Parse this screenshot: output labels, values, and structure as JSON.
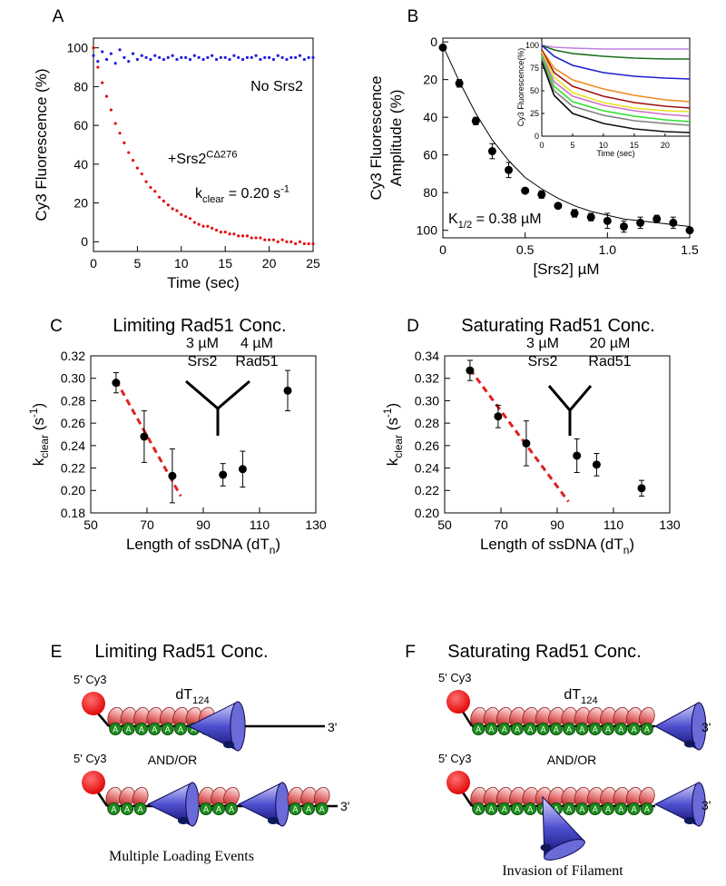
{
  "chart_data": [
    {
      "type": "scatter",
      "label": "A",
      "xlabel": "Time (sec)",
      "ylabel": [
        "Cy3 Fluorescence (%)"
      ],
      "xlim": [
        0,
        25
      ],
      "ylim": [
        -5,
        105
      ],
      "xticks": [
        0,
        5,
        10,
        15,
        20,
        25
      ],
      "yticks": [
        0,
        20,
        40,
        60,
        80,
        100
      ],
      "series": [
        {
          "color": "#1f1fe0",
          "mode": "points",
          "x": [
            0,
            0.5,
            1,
            1.5,
            2,
            2.5,
            3,
            3.5,
            4,
            4.5,
            5,
            5.5,
            6,
            6.5,
            7,
            7.5,
            8,
            8.5,
            9,
            9.5,
            10,
            10.5,
            11,
            11.5,
            12,
            12.5,
            13,
            13.5,
            14,
            14.5,
            15,
            15.5,
            16,
            16.5,
            17,
            17.5,
            18,
            18.5,
            19,
            19.5,
            20,
            20.5,
            21,
            21.5,
            22,
            22.5,
            23,
            23.5,
            24,
            24.5,
            25
          ],
          "values": [
            96,
            93,
            98,
            94,
            97,
            92,
            99,
            95,
            93,
            97,
            94,
            96,
            95,
            94,
            96,
            95,
            94,
            95,
            96,
            94,
            95,
            95,
            94,
            96,
            95,
            94,
            95,
            96,
            94,
            95,
            95,
            94,
            96,
            95,
            94,
            95,
            95,
            96,
            94,
            95,
            95,
            94,
            96,
            95,
            94,
            95,
            95,
            96,
            94,
            95,
            95
          ]
        },
        {
          "color": "#e01010",
          "mode": "points",
          "x": [
            0,
            0.5,
            1,
            1.5,
            2,
            2.5,
            3,
            3.5,
            4,
            4.5,
            5,
            5.5,
            6,
            6.5,
            7,
            7.5,
            8,
            8.5,
            9,
            9.5,
            10,
            10.5,
            11,
            11.5,
            12,
            12.5,
            13,
            13.5,
            14,
            14.5,
            15,
            15.5,
            16,
            16.5,
            17,
            17.5,
            18,
            18.5,
            19,
            19.5,
            20,
            20.5,
            21,
            21.5,
            22,
            22.5,
            23,
            23.5,
            24,
            24.5,
            25
          ],
          "values": [
            100,
            90,
            82,
            75,
            68,
            61,
            56,
            51,
            46,
            42,
            38,
            35,
            31,
            28,
            26,
            23,
            21,
            19,
            17,
            16,
            14,
            13,
            12,
            10,
            9,
            8,
            8,
            7,
            6,
            5,
            5,
            4,
            4,
            3,
            3,
            3,
            2,
            2,
            2,
            1,
            1,
            1,
            0,
            1,
            0,
            0,
            -1,
            0,
            -1,
            -1,
            -1
          ]
        }
      ],
      "annotations": [
        [
          "No Srs2"
        ],
        [
          "+Srs2",
          {
            "sup": "CΔ276"
          }
        ],
        [
          "k",
          {
            "sub": "clear"
          },
          " = 0.20 s",
          {
            "sup": "-1"
          }
        ]
      ]
    },
    {
      "type": "scatter",
      "label": "B",
      "xlabel": "[Srs2] µM",
      "ylabel": [
        "Cy3 Fluorescence",
        "Amplitude (%)"
      ],
      "xlim": [
        0,
        1.5
      ],
      "ylim": [
        -2,
        104
      ],
      "y_inverted": true,
      "xticks": [
        0,
        0.5,
        {
          "value": 1,
          "label": "1.0"
        },
        1.5
      ],
      "yticks": [
        0,
        20,
        40,
        60,
        80,
        100
      ],
      "series": [
        {
          "color": "#000000",
          "mode": "line",
          "x": [
            0,
            0.1,
            0.2,
            0.3,
            0.4,
            0.5,
            0.6,
            0.7,
            0.8,
            0.9,
            1,
            1.1,
            1.2,
            1.3,
            1.4,
            1.5
          ],
          "values": [
            2,
            21,
            38,
            52,
            63,
            72,
            78,
            83,
            87,
            90,
            92,
            94,
            95,
            96,
            97,
            98
          ]
        },
        {
          "color": "#000000",
          "mode": "points",
          "x": [
            0,
            0.1,
            0.2,
            0.3,
            0.4,
            0.5,
            0.6,
            0.7,
            0.8,
            0.9,
            1,
            1.1,
            1.2,
            1.3,
            1.4,
            1.5
          ],
          "values": [
            3,
            22,
            42,
            58,
            68,
            79,
            81,
            87,
            91,
            93,
            95,
            98,
            96,
            94,
            96,
            100
          ],
          "errors": [
            1,
            2,
            2,
            4,
            4,
            1,
            2,
            1,
            2,
            2,
            4,
            3,
            3,
            2,
            3,
            1
          ]
        }
      ],
      "annotations": [
        [
          "K",
          {
            "sub": "1/2"
          },
          " = 0.38 µM"
        ]
      ]
    },
    {
      "type": "line",
      "xlabel": "Time (sec)",
      "ylabel": [
        "Cy3 Fluorescence(%)"
      ],
      "xlim": [
        0,
        24
      ],
      "ylim": [
        0,
        108
      ],
      "xticks": [
        0,
        5,
        10,
        15,
        20
      ],
      "yticks": [
        0,
        25,
        50,
        75,
        100
      ],
      "series": [
        {
          "color": "#c080e0",
          "mode": "line",
          "x": [
            0,
            2,
            5,
            10,
            15,
            20,
            24
          ],
          "values": [
            100,
            98,
            97,
            96,
            96,
            96,
            96
          ]
        },
        {
          "color": "#1a6e1a",
          "mode": "line",
          "x": [
            0,
            2,
            5,
            10,
            15,
            20,
            24
          ],
          "values": [
            100,
            95,
            91,
            88,
            86,
            85,
            85
          ]
        },
        {
          "color": "#1f1fd0",
          "mode": "line",
          "x": [
            0,
            2,
            5,
            10,
            15,
            20,
            24
          ],
          "values": [
            100,
            88,
            78,
            70,
            66,
            64,
            63
          ]
        },
        {
          "color": "#f08a20",
          "mode": "line",
          "x": [
            0,
            2,
            5,
            10,
            15,
            20,
            24
          ],
          "values": [
            95,
            75,
            62,
            52,
            45,
            40,
            38
          ]
        },
        {
          "color": "#a01010",
          "mode": "line",
          "x": [
            0,
            2,
            5,
            10,
            15,
            20,
            24
          ],
          "values": [
            95,
            70,
            55,
            44,
            37,
            33,
            31
          ]
        },
        {
          "color": "#e8e020",
          "mode": "line",
          "x": [
            0,
            2,
            5,
            10,
            15,
            20,
            24
          ],
          "values": [
            93,
            65,
            48,
            37,
            31,
            28,
            27
          ]
        },
        {
          "color": "#d070c0",
          "mode": "line",
          "x": [
            0,
            2,
            5,
            10,
            15,
            20,
            24
          ],
          "values": [
            90,
            60,
            44,
            34,
            28,
            24,
            22
          ]
        },
        {
          "color": "#30e030",
          "mode": "line",
          "x": [
            0,
            2,
            5,
            10,
            15,
            20,
            24
          ],
          "values": [
            88,
            55,
            38,
            28,
            22,
            18,
            16
          ]
        },
        {
          "color": "#808080",
          "mode": "line",
          "x": [
            0,
            2,
            5,
            10,
            15,
            20,
            24
          ],
          "values": [
            85,
            50,
            33,
            23,
            17,
            14,
            12
          ]
        },
        {
          "color": "#101010",
          "mode": "line",
          "x": [
            0,
            2,
            5,
            10,
            15,
            20,
            24
          ],
          "values": [
            82,
            45,
            25,
            14,
            8,
            5,
            4
          ]
        }
      ]
    },
    {
      "type": "scatter",
      "label": "C",
      "title": "Limiting Rad51 Conc.",
      "xlabel": [
        "Length of ssDNA (dT",
        {
          "sub": "n"
        },
        ")"
      ],
      "ylabel": [
        [
          "k",
          {
            "sub": "clear"
          },
          " (s",
          {
            "sup": "-1"
          },
          ")"
        ]
      ],
      "xlim": [
        50,
        130
      ],
      "ylim": [
        0.18,
        0.32
      ],
      "xticks": [
        50,
        70,
        90,
        110,
        130
      ],
      "yticks": [
        0.18,
        {
          "value": 0.2,
          "label": "0.20"
        },
        0.22,
        0.24,
        0.26,
        0.28,
        {
          "value": 0.3,
          "label": "0.30"
        },
        0.32
      ],
      "series": [
        {
          "color": "#e02020",
          "mode": "dashed",
          "x": [
            59,
            82
          ],
          "values": [
            0.298,
            0.195
          ]
        },
        {
          "color": "#000000",
          "mode": "points",
          "x": [
            59,
            69,
            79,
            97,
            104,
            120
          ],
          "values": [
            0.296,
            0.248,
            0.213,
            0.214,
            0.219,
            0.289
          ],
          "errors": [
            0.009,
            0.023,
            0.024,
            0.01,
            0.016,
            0.018
          ]
        }
      ],
      "annotations": [
        "3 µM",
        "Srs2",
        "4 µM",
        "Rad51"
      ]
    },
    {
      "type": "scatter",
      "label": "D",
      "title": "Saturating Rad51 Conc.",
      "xlabel": [
        "Length of ssDNA (dT",
        {
          "sub": "n"
        },
        ")"
      ],
      "ylabel": [
        [
          "k",
          {
            "sub": "clear"
          },
          " (s",
          {
            "sup": "-1"
          },
          ")"
        ]
      ],
      "xlim": [
        50,
        130
      ],
      "ylim": [
        0.2,
        0.34
      ],
      "xticks": [
        50,
        70,
        90,
        110,
        130
      ],
      "yticks": [
        {
          "value": 0.2,
          "label": "0.20"
        },
        0.22,
        0.24,
        0.26,
        0.28,
        {
          "value": 0.3,
          "label": "0.30"
        },
        0.32,
        0.34
      ],
      "series": [
        {
          "color": "#e02020",
          "mode": "dashed",
          "x": [
            59,
            94
          ],
          "values": [
            0.328,
            0.21
          ]
        },
        {
          "color": "#000000",
          "mode": "points",
          "x": [
            59,
            69,
            79,
            97,
            104,
            120
          ],
          "values": [
            0.327,
            0.286,
            0.262,
            0.251,
            0.243,
            0.222
          ],
          "errors": [
            0.009,
            0.01,
            0.02,
            0.015,
            0.01,
            0.007
          ]
        }
      ],
      "annotations": [
        "3 µM",
        "Srs2",
        "20 µM",
        "Rad51"
      ]
    }
  ],
  "diagrams": [
    {
      "label": "E",
      "title": "Limiting Rad51 Conc.",
      "dye": "5' Cy3",
      "substrate": [
        "dT",
        {
          "sub": "124"
        }
      ],
      "end": "3'",
      "connector": "AND/OR",
      "protein": "A",
      "caption": "Multiple Loading Events"
    },
    {
      "label": "F",
      "title": "Saturating Rad51 Conc.",
      "dye": "5' Cy3",
      "substrate": [
        "dT",
        {
          "sub": "124"
        }
      ],
      "end": "3'",
      "connector": "AND/OR",
      "protein": "A",
      "caption": "Invasion of Filament"
    }
  ]
}
